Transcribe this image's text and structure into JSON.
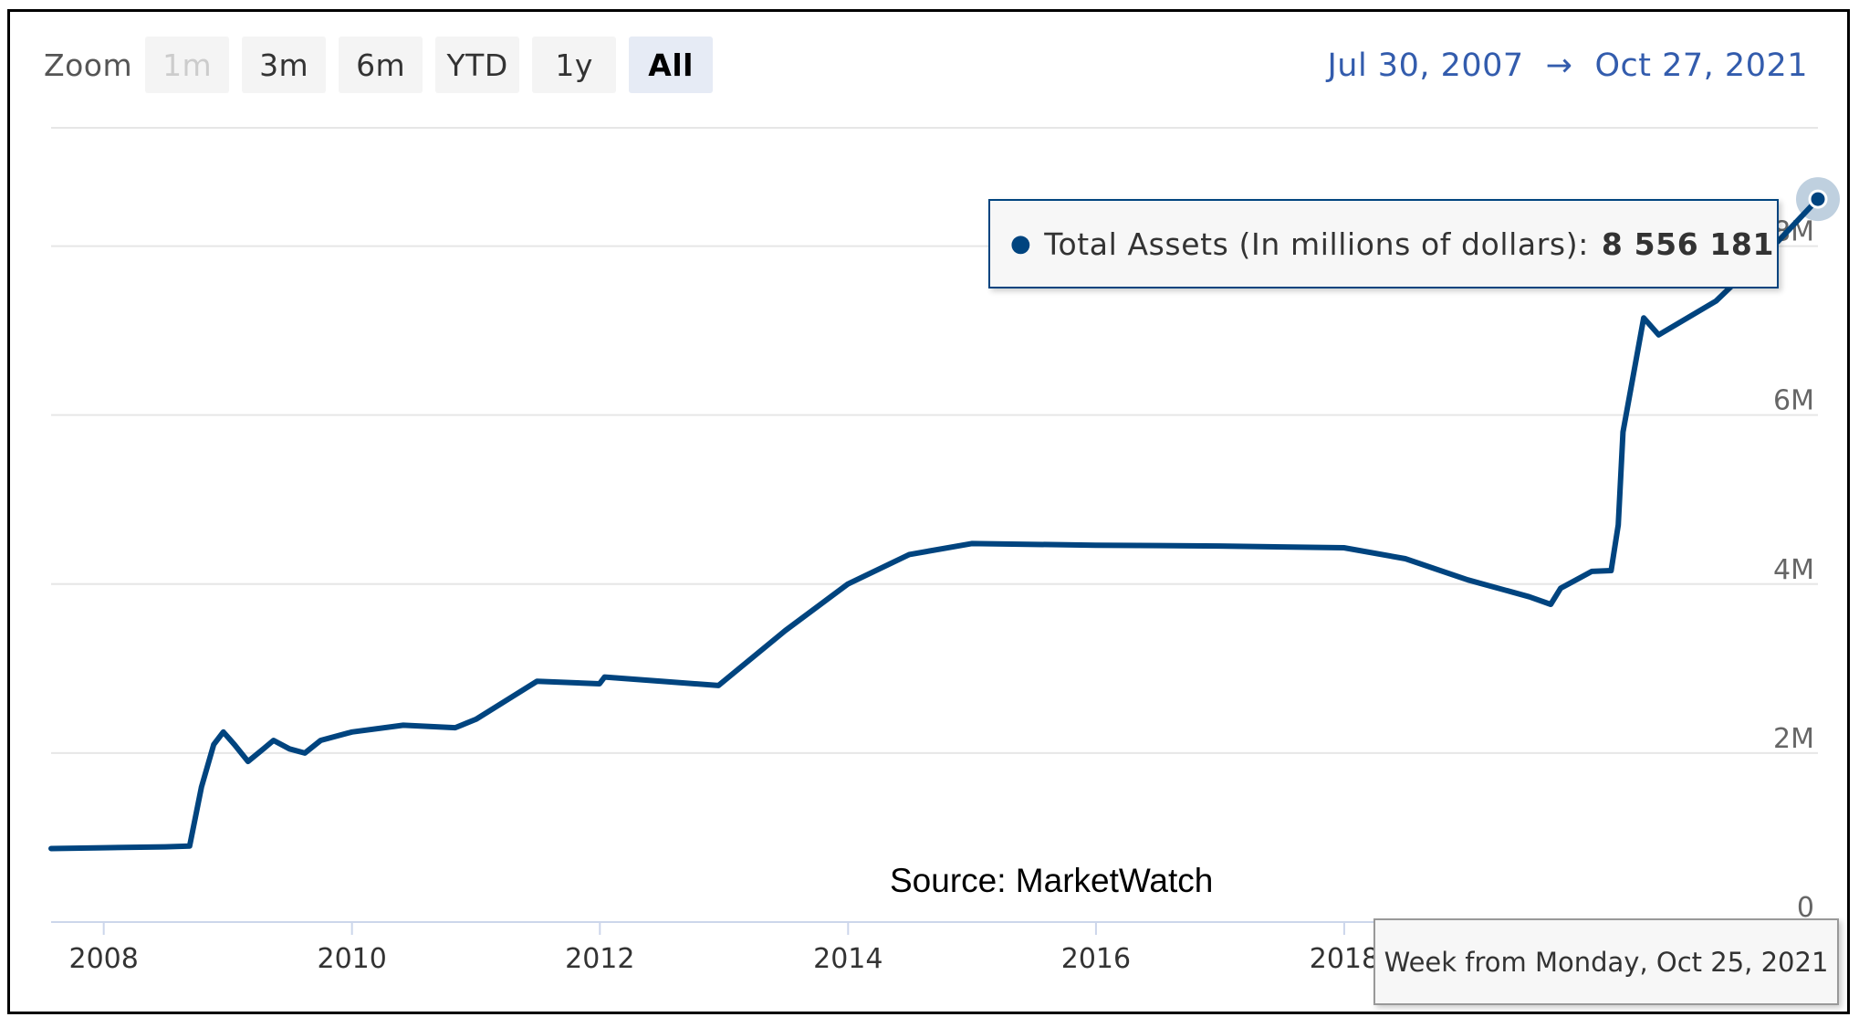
{
  "zoom": {
    "label": "Zoom",
    "buttons": [
      {
        "label": "1m",
        "state": "disabled"
      },
      {
        "label": "3m",
        "state": "normal"
      },
      {
        "label": "6m",
        "state": "normal"
      },
      {
        "label": "YTD",
        "state": "normal"
      },
      {
        "label": "1y",
        "state": "normal"
      },
      {
        "label": "All",
        "state": "active"
      }
    ]
  },
  "range": {
    "from": "Jul 30, 2007",
    "arrow": "→",
    "to": "Oct 27, 2021"
  },
  "source": "Source: MarketWatch",
  "tooltip": {
    "series": "Total Assets (In millions of dollars):",
    "value": "8 556 181",
    "week": "Week from Monday, Oct 25, 2021"
  },
  "colors": {
    "series": "#00447f",
    "range_text": "#335cad",
    "grid": "#e6e6e6"
  },
  "chart_data": {
    "type": "line",
    "title": "",
    "xlabel": "",
    "ylabel": "",
    "x_range": [
      "2007-07-30",
      "2021-10-27"
    ],
    "ylim": [
      0,
      9400000
    ],
    "y_ticks": [
      {
        "value": 0,
        "label": "0"
      },
      {
        "value": 2000000,
        "label": "2M"
      },
      {
        "value": 4000000,
        "label": "4M"
      },
      {
        "value": 6000000,
        "label": "6M"
      },
      {
        "value": 8000000,
        "label": "8M"
      }
    ],
    "x_ticks": [
      "2008",
      "2010",
      "2012",
      "2014",
      "2016",
      "2018"
    ],
    "grid": true,
    "y_axis_position": "right",
    "series": [
      {
        "name": "Total Assets (In millions of dollars)",
        "color": "#00447f",
        "points": [
          [
            "2007-07-30",
            870000
          ],
          [
            "2007-12-31",
            880000
          ],
          [
            "2008-06-30",
            890000
          ],
          [
            "2008-09-10",
            900000
          ],
          [
            "2008-10-15",
            1600000
          ],
          [
            "2008-11-20",
            2100000
          ],
          [
            "2008-12-18",
            2250000
          ],
          [
            "2009-01-20",
            2100000
          ],
          [
            "2009-03-01",
            1900000
          ],
          [
            "2009-04-15",
            2050000
          ],
          [
            "2009-05-15",
            2150000
          ],
          [
            "2009-07-01",
            2050000
          ],
          [
            "2009-08-15",
            2000000
          ],
          [
            "2009-10-01",
            2150000
          ],
          [
            "2010-01-01",
            2250000
          ],
          [
            "2010-06-01",
            2330000
          ],
          [
            "2010-11-01",
            2300000
          ],
          [
            "2011-01-01",
            2400000
          ],
          [
            "2011-06-30",
            2850000
          ],
          [
            "2011-12-31",
            2820000
          ],
          [
            "2012-01-15",
            2900000
          ],
          [
            "2012-06-30",
            2850000
          ],
          [
            "2012-12-15",
            2800000
          ],
          [
            "2013-06-30",
            3450000
          ],
          [
            "2013-12-31",
            4000000
          ],
          [
            "2014-06-30",
            4350000
          ],
          [
            "2014-12-31",
            4480000
          ],
          [
            "2015-12-31",
            4460000
          ],
          [
            "2016-12-31",
            4450000
          ],
          [
            "2017-12-31",
            4430000
          ],
          [
            "2018-06-30",
            4300000
          ],
          [
            "2018-12-31",
            4050000
          ],
          [
            "2019-06-30",
            3850000
          ],
          [
            "2019-09-01",
            3760000
          ],
          [
            "2019-09-30",
            3950000
          ],
          [
            "2019-12-31",
            4150000
          ],
          [
            "2020-02-26",
            4160000
          ],
          [
            "2020-03-18",
            4700000
          ],
          [
            "2020-04-01",
            5800000
          ],
          [
            "2020-06-01",
            7150000
          ],
          [
            "2020-07-15",
            6950000
          ],
          [
            "2020-12-31",
            7350000
          ],
          [
            "2021-06-30",
            8050000
          ],
          [
            "2021-10-27",
            8556181
          ]
        ]
      }
    ]
  }
}
